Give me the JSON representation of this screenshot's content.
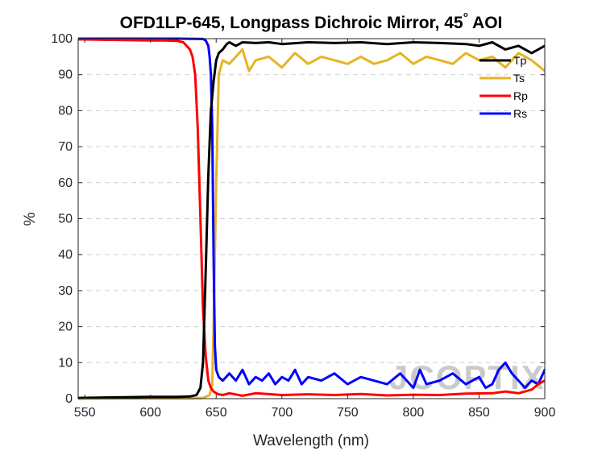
{
  "chart_data": {
    "type": "line",
    "title": "OFD1LP-645, Longpass Dichroic Mirror, 45",
    "title_degree": "°",
    "title_suffix": " AOI",
    "xlabel": "Wavelength (nm)",
    "ylabel": "%",
    "xlim": [
      545,
      900
    ],
    "ylim": [
      0,
      100
    ],
    "xticks": [
      550,
      600,
      650,
      700,
      750,
      800,
      850,
      900
    ],
    "yticks": [
      0,
      10,
      20,
      30,
      40,
      50,
      60,
      70,
      80,
      90,
      100
    ],
    "grid": "horizontal dashed",
    "legend_position": "top-right",
    "watermark": "JCOPTIX",
    "series": [
      {
        "name": "Tp",
        "color": "#000000",
        "x": [
          545,
          560,
          580,
          600,
          620,
          630,
          635,
          638,
          640,
          642,
          644,
          646,
          648,
          650,
          652,
          655,
          658,
          660,
          665,
          670,
          680,
          690,
          700,
          720,
          740,
          760,
          780,
          800,
          820,
          840,
          850,
          860,
          870,
          880,
          890,
          900
        ],
        "y": [
          0.2,
          0.3,
          0.4,
          0.5,
          0.5,
          0.6,
          1,
          3,
          10,
          35,
          62,
          80,
          88,
          94,
          96,
          97,
          98.5,
          99,
          98,
          99,
          98.8,
          99,
          98.5,
          99,
          98.8,
          99,
          98.5,
          99,
          98.8,
          98.5,
          98,
          99,
          97,
          98,
          96,
          98
        ]
      },
      {
        "name": "Ts",
        "color": "#e6b422",
        "x": [
          545,
          560,
          580,
          600,
          620,
          630,
          640,
          645,
          647,
          648,
          650,
          652,
          655,
          660,
          665,
          670,
          675,
          680,
          690,
          700,
          710,
          720,
          730,
          740,
          750,
          760,
          770,
          780,
          790,
          800,
          810,
          820,
          830,
          840,
          850,
          860,
          870,
          880,
          890,
          900
        ],
        "y": [
          0,
          0,
          0.1,
          0.1,
          0.1,
          0.1,
          0.2,
          1,
          4,
          20,
          60,
          90,
          94,
          93,
          95,
          97,
          91,
          94,
          95,
          92,
          96,
          93,
          95,
          94,
          93,
          95,
          93,
          94,
          96,
          93,
          95,
          94,
          93,
          96,
          94,
          95,
          92,
          96,
          94,
          91
        ]
      },
      {
        "name": "Rp",
        "color": "#ff0000",
        "x": [
          545,
          560,
          580,
          600,
          610,
          620,
          625,
          630,
          632,
          634,
          636,
          638,
          640,
          642,
          644,
          646,
          648,
          650,
          652,
          655,
          660,
          670,
          680,
          700,
          720,
          740,
          760,
          780,
          800,
          820,
          840,
          860,
          870,
          880,
          890,
          895,
          900
        ],
        "y": [
          99.8,
          99.7,
          99.6,
          99.5,
          99.5,
          99.4,
          99,
          97,
          95,
          90,
          75,
          50,
          25,
          12,
          5,
          3,
          2,
          1.5,
          1.2,
          1,
          1.5,
          0.8,
          1.5,
          1,
          1.2,
          1,
          1.3,
          0.9,
          1.1,
          1,
          1.4,
          1.5,
          2,
          1.5,
          2.5,
          4,
          5
        ]
      },
      {
        "name": "Rs",
        "color": "#0000ff",
        "x": [
          545,
          560,
          580,
          600,
          620,
          640,
          642,
          644,
          645,
          646,
          647,
          648,
          649,
          650,
          652,
          655,
          660,
          665,
          670,
          675,
          680,
          685,
          690,
          695,
          700,
          705,
          710,
          715,
          720,
          730,
          740,
          750,
          760,
          770,
          780,
          790,
          800,
          805,
          810,
          820,
          830,
          840,
          850,
          855,
          860,
          865,
          870,
          875,
          880,
          885,
          890,
          895,
          900
        ],
        "y": [
          100,
          100,
          100,
          100,
          100,
          99.9,
          99.5,
          98,
          95,
          90,
          75,
          40,
          15,
          8,
          6,
          5,
          7,
          5,
          8,
          4,
          6,
          5,
          7,
          4,
          6,
          5,
          8,
          4,
          6,
          5,
          7,
          4,
          6,
          5,
          4,
          7,
          3,
          8,
          4,
          5,
          7,
          4,
          6,
          3,
          4,
          8,
          10,
          7,
          5,
          3,
          5,
          4,
          8
        ]
      }
    ]
  }
}
